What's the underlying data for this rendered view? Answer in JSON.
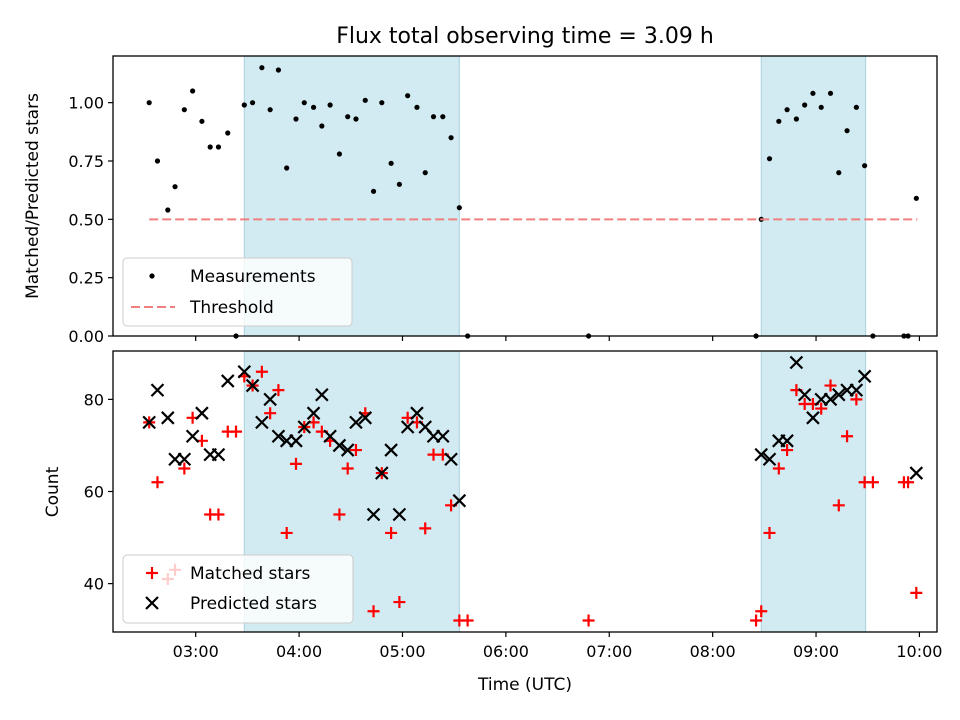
{
  "chart_data": {
    "type": "scatter",
    "title": "Flux total observing time = 3.09 h",
    "xlabel": "Time (UTC)",
    "x_unit": "hours UTC",
    "xlim": [
      2.2,
      10.17
    ],
    "x_ticks": [
      {
        "value": 3,
        "label": "03:00"
      },
      {
        "value": 4,
        "label": "04:00"
      },
      {
        "value": 5,
        "label": "05:00"
      },
      {
        "value": 6,
        "label": "06:00"
      },
      {
        "value": 7,
        "label": "07:00"
      },
      {
        "value": 8,
        "label": "08:00"
      },
      {
        "value": 9,
        "label": "09:00"
      },
      {
        "value": 10,
        "label": "10:00"
      }
    ],
    "shaded_intervals": [
      [
        3.47,
        5.55
      ],
      [
        8.47,
        9.48
      ]
    ],
    "panels": [
      {
        "id": "ratio",
        "ylabel": "Matched/Predicted stars",
        "ylim": [
          0,
          1.2
        ],
        "y_ticks": [
          {
            "value": 0,
            "label": "0.00"
          },
          {
            "value": 0.25,
            "label": "0.25"
          },
          {
            "value": 0.5,
            "label": "0.50"
          },
          {
            "value": 0.75,
            "label": "0.75"
          },
          {
            "value": 1.0,
            "label": "1.00"
          }
        ],
        "threshold": {
          "name": "Threshold",
          "value": 0.5,
          "x_range": [
            2.55,
            9.98
          ],
          "color": "#f08080"
        },
        "legend": [
          {
            "label": "Measurements",
            "marker": "dot"
          },
          {
            "label": "Threshold",
            "marker": "dash"
          }
        ],
        "series": [
          {
            "name": "Measurements",
            "color": "#000000",
            "x": [
              2.55,
              2.63,
              2.73,
              2.8,
              2.89,
              2.97,
              3.06,
              3.14,
              3.22,
              3.31,
              3.39,
              3.47,
              3.55,
              3.64,
              3.72,
              3.8,
              3.88,
              3.97,
              4.05,
              4.14,
              4.22,
              4.3,
              4.39,
              4.47,
              4.55,
              4.64,
              4.72,
              4.8,
              4.89,
              4.97,
              5.05,
              5.14,
              5.22,
              5.3,
              5.39,
              5.47,
              5.55,
              5.63,
              6.8,
              8.42,
              8.47,
              8.55,
              8.64,
              8.72,
              8.81,
              8.89,
              8.97,
              9.05,
              9.14,
              9.22,
              9.3,
              9.39,
              9.47,
              9.55,
              9.85,
              9.89,
              9.97
            ],
            "y": [
              1.0,
              0.75,
              0.54,
              0.64,
              0.97,
              1.05,
              0.92,
              0.81,
              0.81,
              0.87,
              0.0,
              0.99,
              1.0,
              1.15,
              0.97,
              1.14,
              0.72,
              0.93,
              1.0,
              0.98,
              0.9,
              0.99,
              0.78,
              0.94,
              0.93,
              1.01,
              0.62,
              1.0,
              0.74,
              0.65,
              1.03,
              0.98,
              0.7,
              0.94,
              0.94,
              0.85,
              0.55,
              0.0,
              0.0,
              0.0,
              0.5,
              0.76,
              0.92,
              0.97,
              0.93,
              0.99,
              1.04,
              0.98,
              1.04,
              0.7,
              0.88,
              0.98,
              0.73,
              0.0,
              0.0,
              0.0,
              0.59
            ]
          }
        ]
      },
      {
        "id": "count",
        "ylabel": "Count",
        "ylim": [
          29.5,
          90.5
        ],
        "y_ticks": [
          {
            "value": 40,
            "label": "40"
          },
          {
            "value": 60,
            "label": "60"
          },
          {
            "value": 80,
            "label": "80"
          }
        ],
        "legend": [
          {
            "label": "Matched stars",
            "marker": "plus"
          },
          {
            "label": "Predicted stars",
            "marker": "cross"
          }
        ],
        "series": [
          {
            "name": "Matched stars",
            "color": "#ff0000",
            "marker": "plus",
            "x": [
              2.55,
              2.63,
              2.73,
              2.8,
              2.89,
              2.97,
              3.06,
              3.14,
              3.22,
              3.31,
              3.39,
              3.47,
              3.55,
              3.64,
              3.72,
              3.8,
              3.88,
              3.97,
              4.05,
              4.14,
              4.22,
              4.3,
              4.39,
              4.47,
              4.55,
              4.64,
              4.72,
              4.8,
              4.89,
              4.97,
              5.05,
              5.14,
              5.22,
              5.3,
              5.39,
              5.47,
              5.55,
              5.63,
              6.8,
              8.42,
              8.47,
              8.55,
              8.64,
              8.72,
              8.81,
              8.89,
              8.97,
              9.05,
              9.14,
              9.22,
              9.3,
              9.39,
              9.47,
              9.55,
              9.85,
              9.89,
              9.97
            ],
            "y": [
              75,
              62,
              41,
              43,
              65,
              76,
              71,
              55,
              55,
              73,
              73,
              85,
              83,
              86,
              77,
              82,
              51,
              66,
              74,
              75,
              73,
              71,
              55,
              65,
              69,
              77,
              34,
              64,
              51,
              36,
              76,
              75,
              52,
              68,
              68,
              57,
              32,
              32,
              32,
              32,
              34,
              51,
              65,
              69,
              82,
              79,
              79,
              78,
              83,
              57,
              72,
              80,
              62,
              62,
              62,
              62,
              38
            ]
          },
          {
            "name": "Predicted stars",
            "color": "#000000",
            "marker": "cross",
            "x": [
              2.55,
              2.63,
              2.73,
              2.8,
              2.89,
              2.97,
              3.06,
              3.14,
              3.22,
              3.31,
              3.47,
              3.55,
              3.64,
              3.72,
              3.8,
              3.88,
              3.97,
              4.05,
              4.14,
              4.22,
              4.3,
              4.39,
              4.47,
              4.55,
              4.64,
              4.72,
              4.8,
              4.89,
              4.97,
              5.05,
              5.14,
              5.22,
              5.3,
              5.39,
              5.47,
              5.55,
              8.47,
              8.55,
              8.64,
              8.72,
              8.81,
              8.89,
              8.97,
              9.05,
              9.14,
              9.22,
              9.3,
              9.39,
              9.47,
              9.97
            ],
            "y": [
              75,
              82,
              76,
              67,
              67,
              72,
              77,
              68,
              68,
              84,
              86,
              83,
              75,
              80,
              72,
              71,
              71,
              74,
              77,
              81,
              72,
              70,
              69,
              75,
              76,
              55,
              64,
              69,
              55,
              74,
              77,
              74,
              72,
              72,
              67,
              58,
              68,
              67,
              71,
              71,
              88,
              81,
              76,
              80,
              80,
              81,
              82,
              82,
              85,
              64
            ]
          }
        ]
      }
    ]
  },
  "colors": {
    "shade": "#add8e6",
    "shade_edge": "#a9d2df",
    "matched": "#ff0000",
    "predicted": "#000000",
    "threshold": "#f08080"
  }
}
